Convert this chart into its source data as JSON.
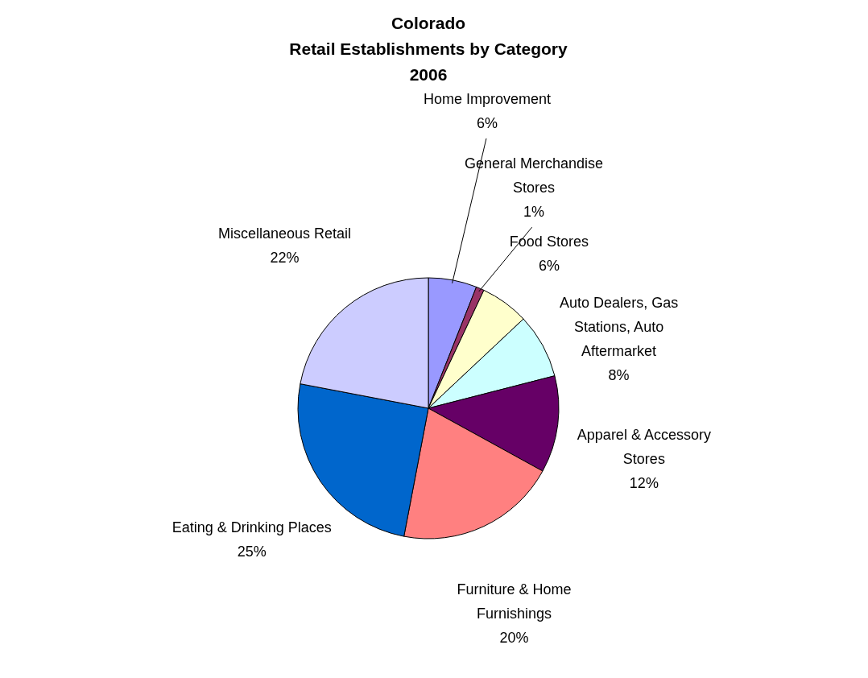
{
  "chart_data": {
    "type": "pie",
    "title": "Colorado\nRetail Establishments by Category\n2006",
    "categories": [
      "Home Improvement",
      "General Merchandise Stores",
      "Food Stores",
      "Auto Dealers, Gas Stations, Auto Aftermarket",
      "Apparel & Accessory Stores",
      "Furniture & Home Furnishings",
      "Eating & Drinking Places",
      "Miscellaneous Retail"
    ],
    "values": [
      6,
      1,
      6,
      8,
      12,
      20,
      25,
      22
    ],
    "value_labels": [
      "6%",
      "1%",
      "6%",
      "8%",
      "12%",
      "20%",
      "25%",
      "22%"
    ],
    "colors": [
      "#9999ff",
      "#993366",
      "#ffffcc",
      "#ccffff",
      "#660066",
      "#ff8080",
      "#0066cc",
      "#ccccff"
    ]
  }
}
